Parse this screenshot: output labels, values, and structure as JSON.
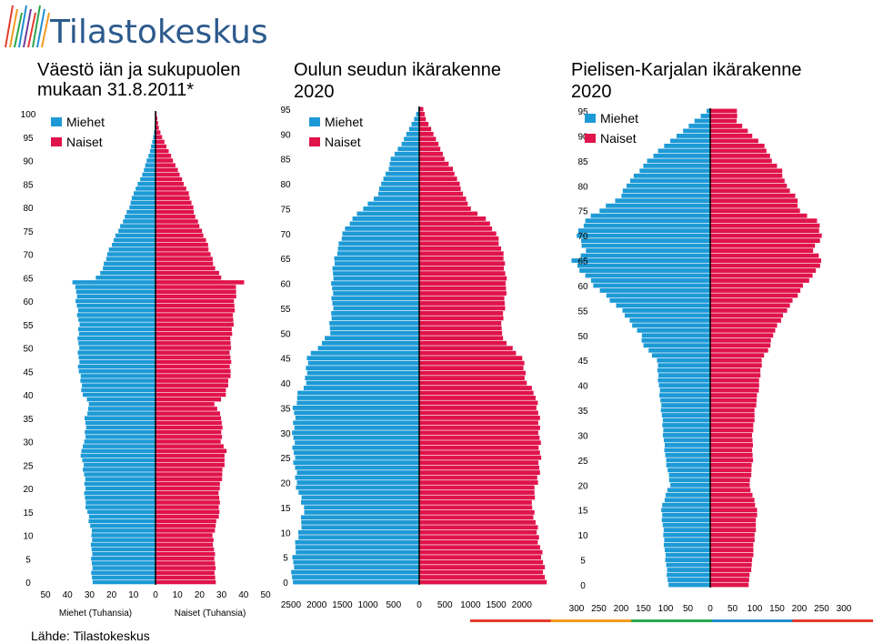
{
  "header": {
    "brand": "Tilastokeskus",
    "stripe_colors": [
      "#e63a2e",
      "#f39a1e",
      "#2aa64a",
      "#1f8ed0",
      "#e63a2e"
    ]
  },
  "colors": {
    "men": "#1d9ad6",
    "women": "#e0134b",
    "axis": "#000000"
  },
  "source": "Lähde: Tilastokeskus",
  "chart_data": [
    {
      "type": "bar",
      "title": "Väestö iän ja sukupuolen mukaan 31.8.2011*",
      "title_lines": [
        "Väestö iän ja sukupuolen",
        "mukaan 31.8.2011*"
      ],
      "legend": [
        "Miehet",
        "Naiset"
      ],
      "xlabel_left": "Miehet (Tuhansia)",
      "xlabel_right": "Naiset (Tuhansia)",
      "xlim": [
        -50,
        50
      ],
      "xticks": [
        -50,
        -40,
        -30,
        -20,
        -10,
        0,
        10,
        20,
        30,
        40,
        50
      ],
      "xtick_labels": [
        "50",
        "40",
        "30",
        "20",
        "10",
        "0",
        "10",
        "20",
        "30",
        "40",
        "50"
      ],
      "ylim": [
        0,
        100
      ],
      "yticks": [
        0,
        5,
        10,
        15,
        20,
        25,
        30,
        35,
        40,
        45,
        50,
        55,
        60,
        65,
        70,
        75,
        80,
        85,
        90,
        95,
        100
      ],
      "age_ranges": [
        0,
        100
      ],
      "men_anchors": [
        [
          0,
          29
        ],
        [
          5,
          29
        ],
        [
          10,
          29
        ],
        [
          15,
          31
        ],
        [
          17,
          32
        ],
        [
          20,
          32
        ],
        [
          25,
          33
        ],
        [
          28,
          34
        ],
        [
          30,
          32
        ],
        [
          35,
          32
        ],
        [
          38,
          30
        ],
        [
          40,
          33
        ],
        [
          43,
          34
        ],
        [
          45,
          35
        ],
        [
          50,
          35
        ],
        [
          55,
          35
        ],
        [
          60,
          36
        ],
        [
          63,
          36
        ],
        [
          64,
          38
        ],
        [
          65,
          27
        ],
        [
          67,
          24
        ],
        [
          70,
          22
        ],
        [
          73,
          19
        ],
        [
          75,
          17
        ],
        [
          78,
          14
        ],
        [
          80,
          12
        ],
        [
          83,
          10
        ],
        [
          85,
          8
        ],
        [
          87,
          6
        ],
        [
          90,
          4
        ],
        [
          92,
          2.5
        ],
        [
          95,
          1
        ],
        [
          97,
          0.4
        ],
        [
          100,
          0
        ]
      ],
      "women_anchors": [
        [
          0,
          27
        ],
        [
          5,
          27
        ],
        [
          10,
          26
        ],
        [
          15,
          29
        ],
        [
          20,
          29
        ],
        [
          25,
          31
        ],
        [
          28,
          32
        ],
        [
          30,
          30
        ],
        [
          35,
          30
        ],
        [
          38,
          27
        ],
        [
          40,
          32
        ],
        [
          45,
          34
        ],
        [
          50,
          34
        ],
        [
          55,
          35
        ],
        [
          60,
          36
        ],
        [
          63,
          37
        ],
        [
          64,
          40
        ],
        [
          65,
          30
        ],
        [
          67,
          27
        ],
        [
          70,
          25
        ],
        [
          73,
          23
        ],
        [
          75,
          21
        ],
        [
          78,
          18
        ],
        [
          80,
          17
        ],
        [
          83,
          15
        ],
        [
          85,
          13
        ],
        [
          87,
          11
        ],
        [
          90,
          8
        ],
        [
          92,
          6
        ],
        [
          95,
          3
        ],
        [
          97,
          1.5
        ],
        [
          100,
          0.5
        ]
      ]
    },
    {
      "type": "bar",
      "title": "Oulun seudun ikärakenne 2020",
      "title_lines": [
        "Oulun seudun ikärakenne",
        "2020"
      ],
      "legend": [
        "Miehet",
        "Naiset"
      ],
      "xlim": [
        -2500,
        2500
      ],
      "xticks": [
        -2500,
        -2000,
        -1500,
        -1000,
        -500,
        0,
        500,
        1000,
        1500,
        2000
      ],
      "xtick_labels": [
        "2500",
        "2000",
        "1500",
        "1000",
        "500",
        "0",
        "500",
        "1000",
        "1500",
        "2000"
      ],
      "ylim": [
        0,
        95
      ],
      "yticks": [
        0,
        5,
        10,
        15,
        20,
        25,
        30,
        35,
        40,
        45,
        50,
        55,
        60,
        65,
        70,
        75,
        80,
        85,
        90,
        95
      ],
      "age_ranges": [
        0,
        95
      ],
      "men_anchors": [
        [
          0,
          2500
        ],
        [
          5,
          2450
        ],
        [
          10,
          2350
        ],
        [
          15,
          2250
        ],
        [
          18,
          2350
        ],
        [
          20,
          2400
        ],
        [
          25,
          2450
        ],
        [
          30,
          2450
        ],
        [
          35,
          2450
        ],
        [
          38,
          2350
        ],
        [
          40,
          2200
        ],
        [
          45,
          2200
        ],
        [
          48,
          1900
        ],
        [
          50,
          1750
        ],
        [
          55,
          1700
        ],
        [
          60,
          1700
        ],
        [
          65,
          1650
        ],
        [
          70,
          1500
        ],
        [
          73,
          1300
        ],
        [
          75,
          1100
        ],
        [
          78,
          800
        ],
        [
          80,
          750
        ],
        [
          83,
          600
        ],
        [
          85,
          550
        ],
        [
          88,
          350
        ],
        [
          90,
          250
        ],
        [
          93,
          100
        ],
        [
          95,
          20
        ]
      ],
      "women_anchors": [
        [
          0,
          2450
        ],
        [
          5,
          2400
        ],
        [
          10,
          2300
        ],
        [
          15,
          2200
        ],
        [
          18,
          2250
        ],
        [
          20,
          2300
        ],
        [
          25,
          2350
        ],
        [
          30,
          2350
        ],
        [
          35,
          2300
        ],
        [
          38,
          2250
        ],
        [
          40,
          2100
        ],
        [
          45,
          2000
        ],
        [
          48,
          1700
        ],
        [
          50,
          1600
        ],
        [
          55,
          1650
        ],
        [
          60,
          1700
        ],
        [
          65,
          1650
        ],
        [
          70,
          1500
        ],
        [
          73,
          1300
        ],
        [
          75,
          1000
        ],
        [
          78,
          850
        ],
        [
          80,
          780
        ],
        [
          83,
          650
        ],
        [
          85,
          500
        ],
        [
          88,
          370
        ],
        [
          90,
          280
        ],
        [
          93,
          130
        ],
        [
          95,
          80
        ]
      ]
    },
    {
      "type": "bar",
      "title": "Pielisen-Karjalan ikärakenne 2020",
      "title_lines": [
        "Pielisen-Karjalan ikärakenne",
        "2020"
      ],
      "legend": [
        "Miehet",
        "Naiset"
      ],
      "xlim": [
        -300,
        300
      ],
      "xticks": [
        -300,
        -250,
        -200,
        -150,
        -100,
        -50,
        0,
        50,
        100,
        150,
        200,
        250,
        300
      ],
      "xtick_labels": [
        "300",
        "250",
        "200",
        "150",
        "100",
        "50",
        "0",
        "50",
        "100",
        "150",
        "200",
        "250",
        "300"
      ],
      "ylim": [
        0,
        95
      ],
      "yticks": [
        0,
        5,
        10,
        15,
        20,
        25,
        30,
        35,
        40,
        45,
        50,
        55,
        60,
        65,
        70,
        75,
        80,
        85,
        90,
        95
      ],
      "age_ranges": [
        0,
        95
      ],
      "men_anchors": [
        [
          0,
          95
        ],
        [
          5,
          100
        ],
        [
          10,
          105
        ],
        [
          15,
          110
        ],
        [
          18,
          100
        ],
        [
          20,
          90
        ],
        [
          25,
          100
        ],
        [
          30,
          105
        ],
        [
          35,
          110
        ],
        [
          40,
          115
        ],
        [
          45,
          120
        ],
        [
          48,
          150
        ],
        [
          50,
          155
        ],
        [
          55,
          200
        ],
        [
          60,
          260
        ],
        [
          63,
          290
        ],
        [
          65,
          310
        ],
        [
          67,
          280
        ],
        [
          70,
          300
        ],
        [
          73,
          280
        ],
        [
          75,
          250
        ],
        [
          78,
          200
        ],
        [
          80,
          190
        ],
        [
          83,
          160
        ],
        [
          85,
          140
        ],
        [
          88,
          105
        ],
        [
          90,
          75
        ],
        [
          93,
          35
        ],
        [
          95,
          8
        ]
      ],
      "women_anchors": [
        [
          0,
          85
        ],
        [
          5,
          95
        ],
        [
          10,
          100
        ],
        [
          15,
          105
        ],
        [
          18,
          95
        ],
        [
          20,
          88
        ],
        [
          25,
          95
        ],
        [
          30,
          95
        ],
        [
          35,
          100
        ],
        [
          40,
          110
        ],
        [
          45,
          115
        ],
        [
          48,
          135
        ],
        [
          50,
          140
        ],
        [
          55,
          170
        ],
        [
          60,
          210
        ],
        [
          63,
          240
        ],
        [
          65,
          250
        ],
        [
          67,
          230
        ],
        [
          70,
          250
        ],
        [
          73,
          240
        ],
        [
          75,
          200
        ],
        [
          78,
          190
        ],
        [
          80,
          170
        ],
        [
          83,
          160
        ],
        [
          85,
          140
        ],
        [
          88,
          120
        ],
        [
          90,
          95
        ],
        [
          93,
          60
        ],
        [
          95,
          60
        ]
      ]
    }
  ]
}
